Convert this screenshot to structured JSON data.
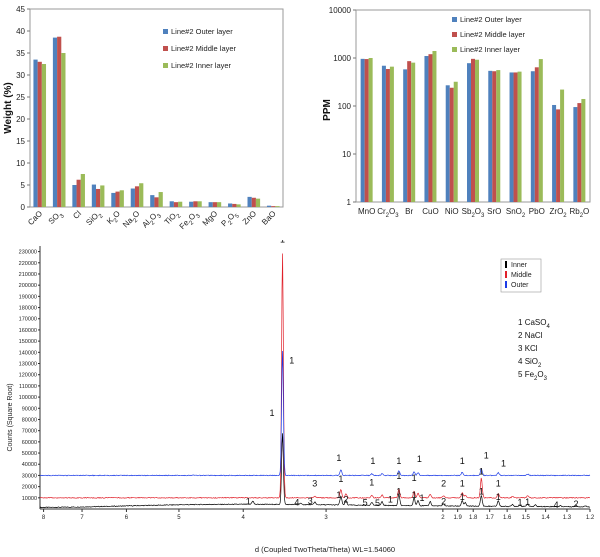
{
  "chart_data": [
    {
      "type": "bar",
      "ylabel": "Weight (%)",
      "ylim": [
        0,
        45
      ],
      "yticks": [
        0,
        5,
        10,
        15,
        20,
        25,
        30,
        35,
        40,
        45
      ],
      "categories": [
        "CaO",
        "SO3",
        "Cl",
        "SiO2",
        "K2O",
        "Na2O",
        "Al2O3",
        "TiO2",
        "Fe2O3",
        "MgO",
        "P2O5",
        "ZnO",
        "BaO"
      ],
      "series": [
        {
          "name": "Line#2 Outer layer",
          "color": "#4f81bd",
          "values": [
            33.5,
            38.5,
            5.0,
            5.1,
            3.2,
            4.2,
            2.7,
            1.3,
            1.2,
            1.1,
            0.8,
            2.3,
            0.3
          ]
        },
        {
          "name": "Line#2 Middle layer",
          "color": "#c0504d",
          "values": [
            33.0,
            38.7,
            6.2,
            4.1,
            3.5,
            4.7,
            2.2,
            1.1,
            1.3,
            1.1,
            0.7,
            2.1,
            0.2
          ]
        },
        {
          "name": "Line#2 Inner layer",
          "color": "#9bbb59",
          "values": [
            32.5,
            35.0,
            7.5,
            4.9,
            3.8,
            5.4,
            3.4,
            1.2,
            1.3,
            1.1,
            0.6,
            1.9,
            0.2
          ]
        }
      ],
      "legend": "top-right",
      "grid": false
    },
    {
      "type": "bar",
      "ylabel": "PPM",
      "yscale": "log",
      "ylim": [
        1,
        10000
      ],
      "ytick_labels": [
        "1",
        "10",
        "100",
        "1000",
        "10000"
      ],
      "categories": [
        "MnO",
        "Cr2O3",
        "Br",
        "CuO",
        "NiO",
        "Sb2O3",
        "SrO",
        "SnO2",
        "PbO",
        "ZrO2",
        "Rb2O"
      ],
      "series": [
        {
          "name": "Line#2 Outer layer",
          "color": "#4f81bd",
          "values": [
            960,
            690,
            580,
            1100,
            270,
            780,
            540,
            500,
            530,
            105,
            95
          ]
        },
        {
          "name": "Line#2 Middle layer",
          "color": "#c0504d",
          "values": [
            950,
            590,
            860,
            1200,
            240,
            960,
            530,
            500,
            640,
            85,
            115
          ]
        },
        {
          "name": "Line#2 Inner layer",
          "color": "#9bbb59",
          "values": [
            1000,
            660,
            800,
            1400,
            320,
            920,
            560,
            520,
            950,
            220,
            140
          ]
        }
      ],
      "legend": "top-right",
      "grid": false
    },
    {
      "type": "line",
      "ylabel": "Counts (Square Root)",
      "xlabel": "d (Coupled TwoTheta/Theta) WL=1.54060",
      "x_reversed": true,
      "xlim": [
        8.1,
        1.2
      ],
      "x_ticks": [
        8,
        7,
        6,
        5,
        4,
        3,
        2,
        1.9,
        1.8,
        1.7,
        1.6,
        1.5,
        1.4,
        1.3,
        1.2
      ],
      "y_ticks": [
        10000,
        20000,
        30000,
        40000,
        50000,
        60000,
        70000,
        80000,
        90000,
        100000,
        110000,
        120000,
        130000,
        140000,
        150000,
        160000,
        170000,
        180000,
        190000,
        200000,
        210000,
        220000,
        230000
      ],
      "series": [
        {
          "name": "Inner",
          "color": "#000000",
          "offset": 0,
          "peaks": [
            [
              3.87,
              3000
            ],
            [
              3.49,
              64000
            ],
            [
              3.28,
              1200
            ],
            [
              3.12,
              2500
            ],
            [
              2.85,
              8000
            ],
            [
              2.8,
              4000
            ],
            [
              2.56,
              2800
            ],
            [
              2.47,
              3200
            ],
            [
              2.33,
              10000
            ],
            [
              2.21,
              7000
            ],
            [
              2.18,
              5000
            ],
            [
              2.09,
              4000
            ],
            [
              1.995,
              1800
            ],
            [
              1.87,
              5000
            ],
            [
              1.85,
              3000
            ],
            [
              1.75,
              9500
            ],
            [
              1.65,
              5000
            ],
            [
              1.57,
              1800
            ],
            [
              1.53,
              1200
            ],
            [
              1.49,
              2500
            ],
            [
              1.45,
              1500
            ],
            [
              1.33,
              800
            ],
            [
              1.26,
              1500
            ],
            [
              1.22,
              800
            ]
          ]
        },
        {
          "name": "Middle",
          "color": "#e0202a",
          "offset": 10000,
          "peaks": [
            [
              3.49,
              220000
            ],
            [
              3.12,
              1500
            ],
            [
              2.85,
              7500
            ],
            [
              2.8,
              3500
            ],
            [
              2.56,
              2500
            ],
            [
              2.47,
              2500
            ],
            [
              2.33,
              8000
            ],
            [
              2.21,
              6000
            ],
            [
              2.18,
              4500
            ],
            [
              2.09,
              3500
            ],
            [
              1.995,
              1800
            ],
            [
              1.87,
              4500
            ],
            [
              1.85,
              2500
            ],
            [
              1.75,
              18000
            ],
            [
              1.65,
              4000
            ],
            [
              1.57,
              1500
            ],
            [
              1.49,
              1800
            ]
          ]
        },
        {
          "name": "Outer",
          "color": "#1c3be6",
          "offset": 30000,
          "peaks": [
            [
              3.49,
              112000
            ],
            [
              2.85,
              5000
            ],
            [
              2.56,
              1500
            ],
            [
              2.47,
              1500
            ],
            [
              2.33,
              4500
            ],
            [
              2.21,
              3500
            ],
            [
              2.18,
              2500
            ],
            [
              1.87,
              3000
            ],
            [
              1.75,
              6000
            ],
            [
              1.65,
              2500
            ],
            [
              1.49,
              1200
            ]
          ]
        }
      ],
      "annotations": [
        {
          "text": "1",
          "x": 3.49,
          "y": 238000
        },
        {
          "text": "1",
          "x": 3.38,
          "y": 130000
        },
        {
          "text": "1",
          "x": 3.62,
          "y": 83000
        },
        {
          "text": "1",
          "x": 2.87,
          "y": 43000
        },
        {
          "text": "1",
          "x": 2.55,
          "y": 40000
        },
        {
          "text": "1",
          "x": 2.33,
          "y": 40000
        },
        {
          "text": "1",
          "x": 2.17,
          "y": 42000
        },
        {
          "text": "1",
          "x": 1.87,
          "y": 40000
        },
        {
          "text": "1",
          "x": 1.72,
          "y": 45000
        },
        {
          "text": "1",
          "x": 1.62,
          "y": 38000
        },
        {
          "text": "3",
          "x": 3.12,
          "y": 20000
        },
        {
          "text": "1",
          "x": 2.85,
          "y": 24000
        },
        {
          "text": "1",
          "x": 2.56,
          "y": 21000
        },
        {
          "text": "1",
          "x": 2.33,
          "y": 27000
        },
        {
          "text": "1",
          "x": 2.21,
          "y": 25000
        },
        {
          "text": "2",
          "x": 1.995,
          "y": 20000
        },
        {
          "text": "1",
          "x": 1.87,
          "y": 20000
        },
        {
          "text": "1",
          "x": 1.75,
          "y": 31000
        },
        {
          "text": "1",
          "x": 1.65,
          "y": 20000
        },
        {
          "text": "1",
          "x": 3.93,
          "y": 4000
        },
        {
          "text": "4",
          "x": 3.32,
          "y": 3000
        },
        {
          "text": "3",
          "x": 3.17,
          "y": 4500
        },
        {
          "text": "1",
          "x": 2.87,
          "y": 10000
        },
        {
          "text": "2",
          "x": 2.8,
          "y": 6000
        },
        {
          "text": "5",
          "x": 2.62,
          "y": 3000
        },
        {
          "text": "5",
          "x": 2.51,
          "y": 2500
        },
        {
          "text": "1",
          "x": 2.4,
          "y": 6000
        },
        {
          "text": "1",
          "x": 2.33,
          "y": 13000
        },
        {
          "text": "1",
          "x": 2.21,
          "y": 10000
        },
        {
          "text": "1",
          "x": 2.15,
          "y": 7000
        },
        {
          "text": "2",
          "x": 1.995,
          "y": 4000
        },
        {
          "text": "1",
          "x": 1.87,
          "y": 8000
        },
        {
          "text": "1",
          "x": 1.75,
          "y": 13000
        },
        {
          "text": "1",
          "x": 1.65,
          "y": 8000
        },
        {
          "text": "1",
          "x": 1.53,
          "y": 3000
        },
        {
          "text": "1",
          "x": 1.49,
          "y": 3500
        },
        {
          "text": "4",
          "x": 1.35,
          "y": 1000
        },
        {
          "text": "2",
          "x": 1.26,
          "y": 2000
        }
      ],
      "legend": {
        "placement": "top-right",
        "items": [
          "Inner",
          "Middle",
          "Outer"
        ]
      },
      "phase_key": [
        "1 CaSO4",
        "2 NaCl",
        "3 KCl",
        "4 SiO2",
        "5 Fe2O3"
      ]
    }
  ]
}
